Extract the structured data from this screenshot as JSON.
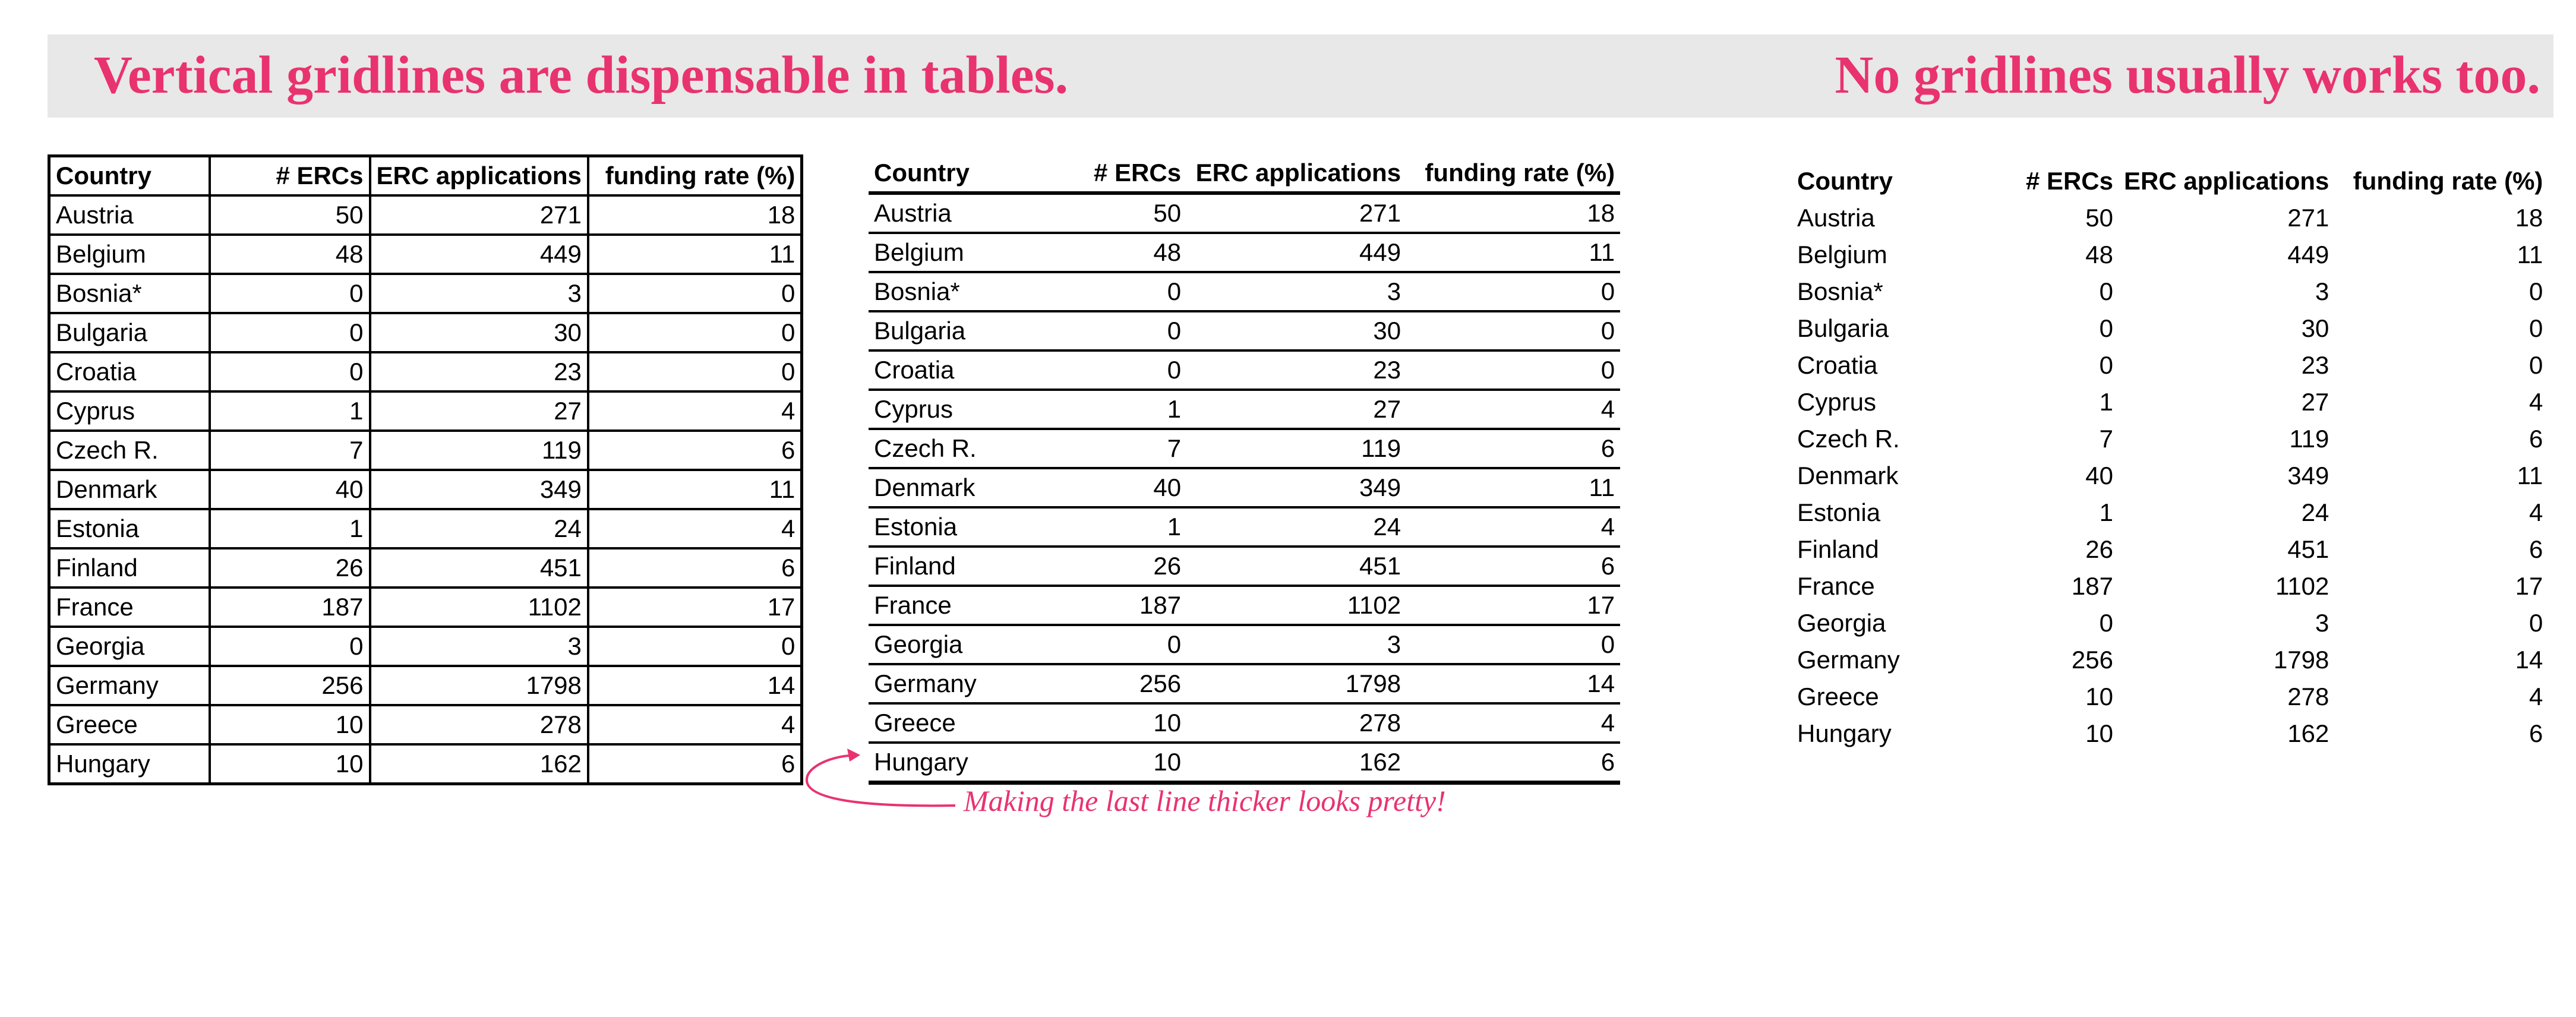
{
  "colors": {
    "accent": "#e8336f",
    "banner": "#e8e8e8"
  },
  "headings": {
    "left": "Vertical gridlines are dispensable in tables.",
    "right": "No gridlines usually works too."
  },
  "annotation": {
    "text": "Making the last line thicker looks pretty!",
    "icon": "curved-arrow-icon"
  },
  "table": {
    "columns": [
      "Country",
      "# ERCs",
      "ERC applications",
      "funding rate (%)"
    ],
    "rows": [
      [
        "Austria",
        "50",
        "271",
        "18"
      ],
      [
        "Belgium",
        "48",
        "449",
        "11"
      ],
      [
        "Bosnia*",
        "0",
        "3",
        "0"
      ],
      [
        "Bulgaria",
        "0",
        "30",
        "0"
      ],
      [
        "Croatia",
        "0",
        "23",
        "0"
      ],
      [
        "Cyprus",
        "1",
        "27",
        "4"
      ],
      [
        "Czech R.",
        "7",
        "119",
        "6"
      ],
      [
        "Denmark",
        "40",
        "349",
        "11"
      ],
      [
        "Estonia",
        "1",
        "24",
        "4"
      ],
      [
        "Finland",
        "26",
        "451",
        "6"
      ],
      [
        "France",
        "187",
        "1102",
        "17"
      ],
      [
        "Georgia",
        "0",
        "3",
        "0"
      ],
      [
        "Germany",
        "256",
        "1798",
        "14"
      ],
      [
        "Greece",
        "10",
        "278",
        "4"
      ],
      [
        "Hungary",
        "10",
        "162",
        "6"
      ]
    ]
  }
}
